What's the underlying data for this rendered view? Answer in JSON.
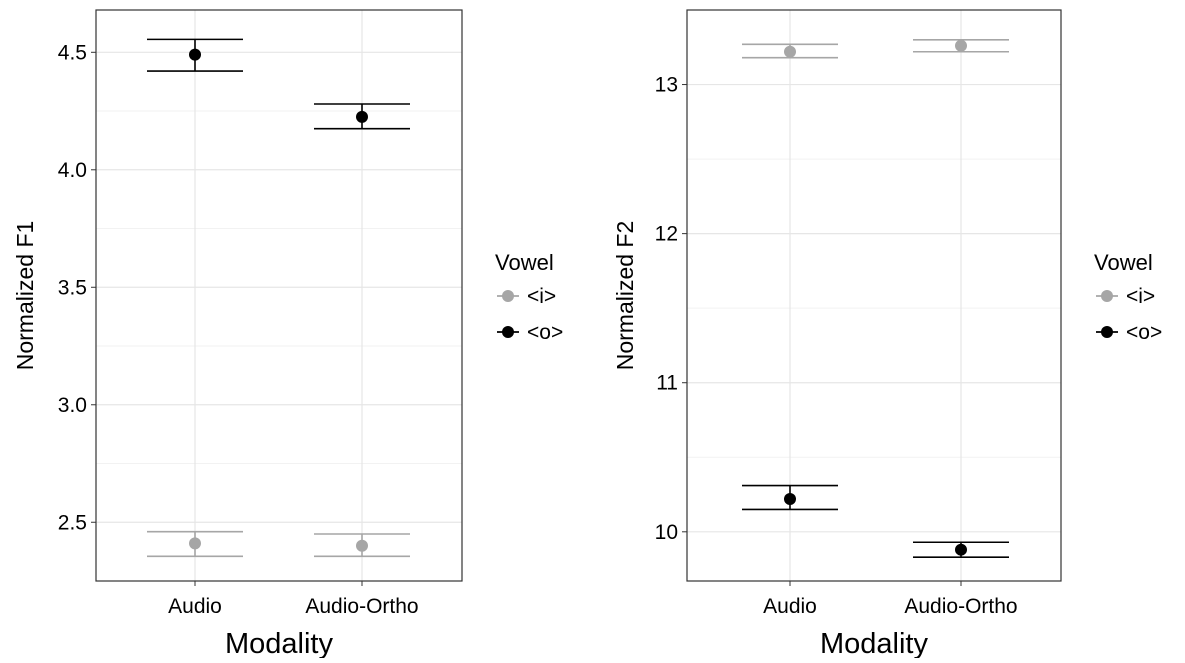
{
  "chart_data": [
    {
      "type": "scatter",
      "error_bars": true,
      "categories": [
        "Audio",
        "Audio-Ortho"
      ],
      "xlabel": "Modality",
      "ylabel": "Normalized F1",
      "ylim": [
        2.25,
        4.68
      ],
      "yticks": [
        "2.5",
        "3.0",
        "3.5",
        "4.0",
        "4.5"
      ],
      "grid": true,
      "legend": {
        "title": "Vowel",
        "position": "right",
        "entries": [
          "<i>",
          "<o>"
        ]
      },
      "series": [
        {
          "name": "<i>",
          "color": "#a6a6a6",
          "values": [
            2.41,
            2.4
          ],
          "lower": [
            2.355,
            2.355
          ],
          "upper": [
            2.46,
            2.45
          ]
        },
        {
          "name": "<o>",
          "color": "#000000",
          "values": [
            4.49,
            4.225
          ],
          "lower": [
            4.42,
            4.175
          ],
          "upper": [
            4.555,
            4.28
          ]
        }
      ]
    },
    {
      "type": "scatter",
      "error_bars": true,
      "categories": [
        "Audio",
        "Audio-Ortho"
      ],
      "xlabel": "Modality",
      "ylabel": "Normalized F2",
      "ylim": [
        9.67,
        13.5
      ],
      "yticks": [
        "10",
        "11",
        "12",
        "13"
      ],
      "grid": true,
      "legend": {
        "title": "Vowel",
        "position": "right",
        "entries": [
          "<i>",
          "<o>"
        ]
      },
      "series": [
        {
          "name": "<i>",
          "color": "#a6a6a6",
          "values": [
            13.22,
            13.26
          ],
          "lower": [
            13.18,
            13.22
          ],
          "upper": [
            13.27,
            13.3
          ]
        },
        {
          "name": "<o>",
          "color": "#000000",
          "values": [
            10.22,
            9.88
          ],
          "lower": [
            10.15,
            9.83
          ],
          "upper": [
            10.31,
            9.93
          ]
        }
      ]
    }
  ]
}
